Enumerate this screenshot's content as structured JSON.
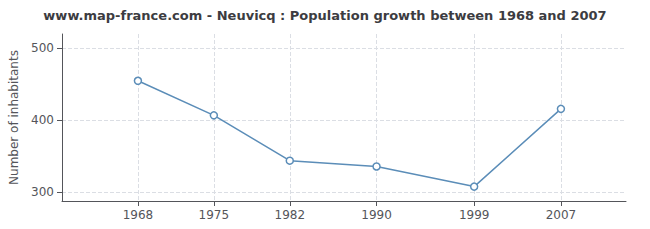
{
  "chart_data": {
    "type": "line",
    "title": "www.map-france.com - Neuvicq : Population growth between 1968 and 2007",
    "ylabel": "Number of inhabitants",
    "x": [
      1968,
      1975,
      1982,
      1990,
      1999,
      2007
    ],
    "values": [
      455,
      407,
      344,
      336,
      308,
      416
    ],
    "xlim": [
      1961,
      2013
    ],
    "xticks": [
      1968,
      1975,
      1982,
      1990,
      1999,
      2007
    ],
    "ylim": [
      288,
      520
    ],
    "yticks": [
      300,
      400,
      500
    ],
    "color": "#5b8db8",
    "marker": "circle",
    "grid": true
  }
}
